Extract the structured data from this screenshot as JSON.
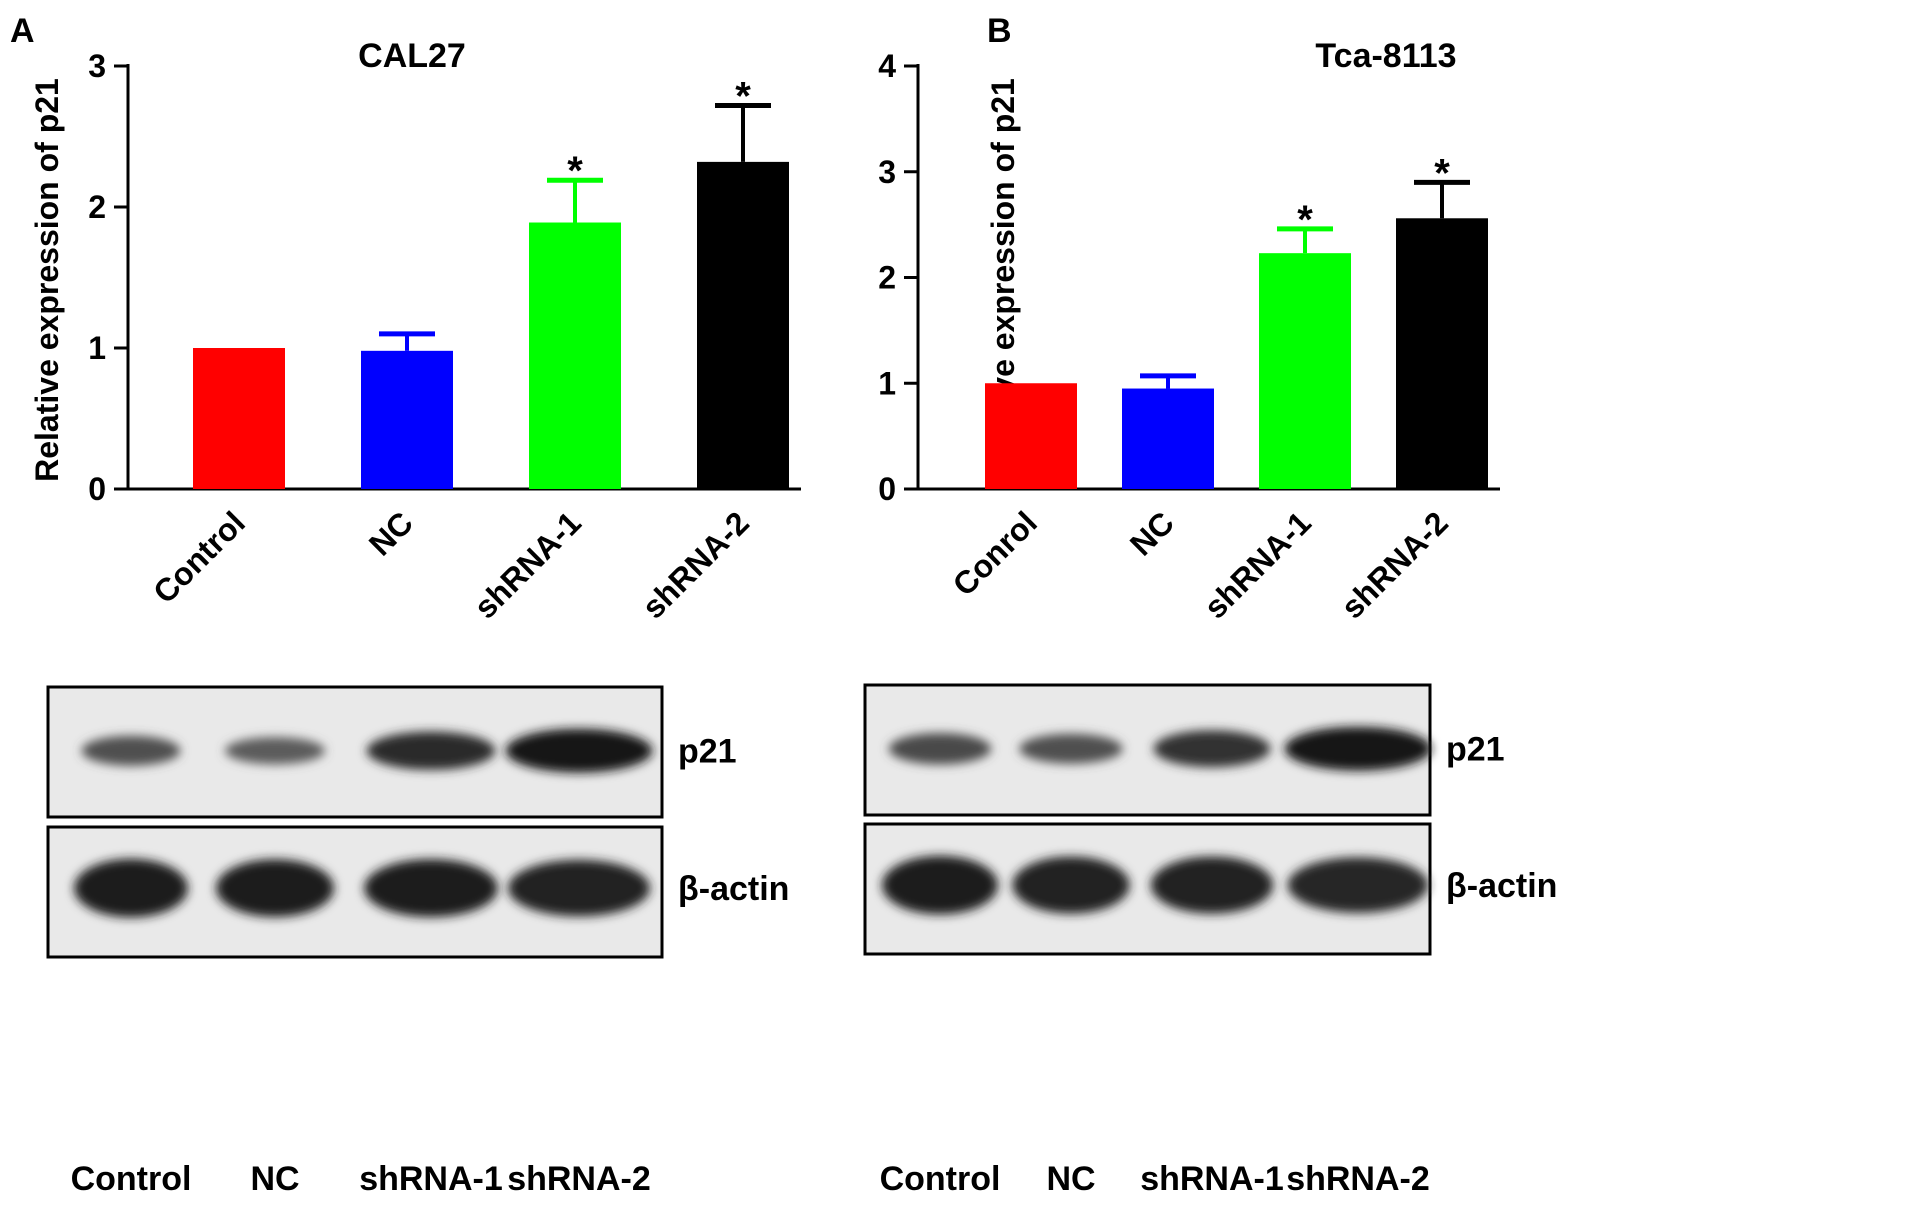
{
  "colors": {
    "control": "#ff0000",
    "nc": "#0000ff",
    "shrna1": "#00ff00",
    "shrna2": "#000000",
    "axis": "#000000",
    "blot_bg": "#e9e9e9"
  },
  "chart_data": [
    {
      "type": "bar",
      "panel_letter": "A",
      "title": "CAL27",
      "ylabel": "Relative expression of p21",
      "xlabel": "",
      "categories": [
        "Control",
        "NC",
        "shRNA-1",
        "shRNA-2"
      ],
      "values": [
        1.0,
        0.98,
        1.89,
        2.32
      ],
      "errors": [
        0,
        0.12,
        0.3,
        0.4
      ],
      "significance": [
        "",
        "",
        "*",
        "*"
      ],
      "yticks": [
        "0",
        "1",
        "2",
        "3"
      ],
      "ylim": [
        0,
        3
      ],
      "grid": false,
      "tick_label_rotation": -45
    },
    {
      "type": "bar",
      "panel_letter": "B",
      "title": "Tca-8113",
      "ylabel": "Relative expression of p21",
      "xlabel": "",
      "categories": [
        "Conrol",
        "NC",
        "shRNA-1",
        "shRNA-2"
      ],
      "values": [
        1.0,
        0.95,
        2.23,
        2.56
      ],
      "errors": [
        0,
        0.12,
        0.23,
        0.34
      ],
      "significance": [
        "",
        "",
        "*",
        "*"
      ],
      "yticks": [
        "0",
        "1",
        "2",
        "3",
        "4"
      ],
      "ylim": [
        0,
        4
      ],
      "grid": false,
      "tick_label_rotation": -45
    }
  ],
  "blots": [
    {
      "rows": [
        {
          "label": "p21",
          "intensities": [
            0.5,
            0.4,
            0.8,
            1.0
          ]
        },
        {
          "label": "β-actin",
          "intensities": [
            0.95,
            0.92,
            0.93,
            0.88
          ]
        }
      ],
      "lanes": [
        "Control",
        "NC",
        "shRNA-1",
        "shRNA-2"
      ]
    },
    {
      "rows": [
        {
          "label": "p21",
          "intensities": [
            0.55,
            0.5,
            0.75,
            1.0
          ]
        },
        {
          "label": "β-actin",
          "intensities": [
            0.95,
            0.9,
            0.9,
            0.85
          ]
        }
      ],
      "lanes": [
        "Control",
        "NC",
        "shRNA-1",
        "shRNA-2"
      ]
    }
  ]
}
